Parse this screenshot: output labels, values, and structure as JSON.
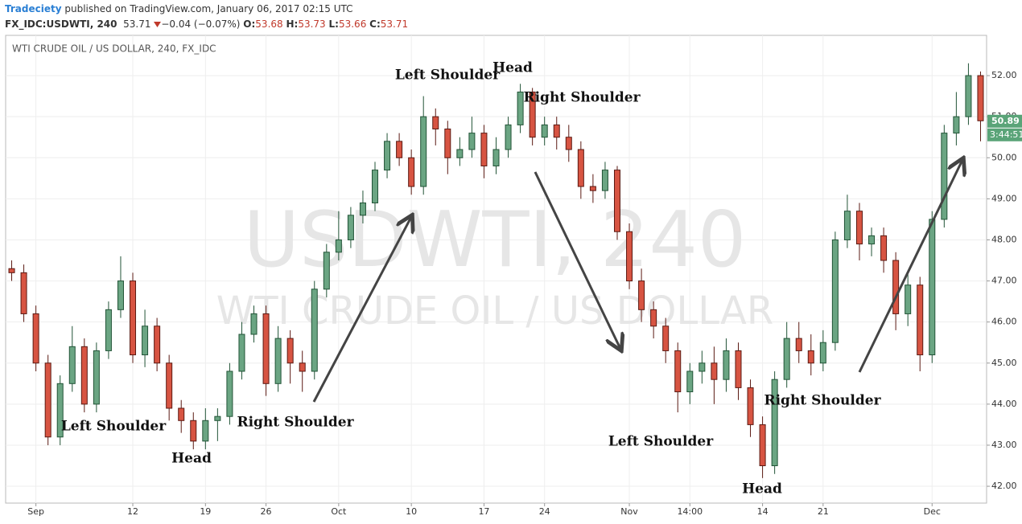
{
  "header": {
    "publisher": "Tradeciety",
    "published": "published on TradingView.com, January 06, 2017 02:15 UTC",
    "symbol": "FX_IDC:USDWTI, 240",
    "last": "53.71",
    "change": "−0.04 (−0.07%)",
    "open_label": "O:",
    "open": "53.68",
    "high_label": "H:",
    "high": "53.73",
    "low_label": "L:",
    "low": "53.66",
    "close_label": "C:",
    "close": "53.71"
  },
  "chart_data": {
    "type": "candlestick",
    "title": "WTI CRUDE OIL / US DOLLAR, 240, FX_IDC",
    "watermark": [
      "USDWTI, 240",
      "WTI CRUDE OIL / US DOLLAR"
    ],
    "up_color": "#6ba583",
    "up_border": "#225437",
    "down_color": "#d75442",
    "down_border": "#5b1a13",
    "grid": true,
    "categories": [
      null,
      null,
      "Sep",
      null,
      null,
      null,
      null,
      null,
      null,
      null,
      "12",
      null,
      null,
      null,
      null,
      null,
      "19",
      null,
      null,
      null,
      null,
      "26",
      null,
      null,
      null,
      null,
      null,
      "Oct",
      null,
      null,
      null,
      null,
      null,
      "10",
      null,
      null,
      null,
      null,
      null,
      "17",
      null,
      null,
      null,
      null,
      "24",
      null,
      null,
      null,
      null,
      null,
      null,
      "Nov",
      null,
      null,
      null,
      null,
      "14:00",
      null,
      null,
      null,
      null,
      null,
      "14",
      null,
      null,
      null,
      null,
      "21",
      null,
      null,
      null,
      null,
      null,
      null,
      null,
      null,
      "Dec",
      null,
      null,
      null,
      null
    ],
    "open": [
      47.3,
      47.2,
      46.2,
      45.0,
      43.2,
      44.5,
      45.4,
      44.0,
      45.3,
      46.3,
      47.0,
      45.2,
      45.9,
      45.0,
      43.9,
      43.6,
      43.1,
      43.6,
      43.7,
      44.8,
      45.7,
      46.2,
      44.5,
      45.6,
      45.0,
      44.8,
      46.8,
      47.7,
      48.0,
      48.6,
      48.9,
      49.7,
      50.4,
      50.0,
      49.3,
      51.0,
      50.7,
      50.0,
      50.2,
      50.6,
      49.8,
      50.2,
      50.8,
      51.6,
      50.5,
      50.8,
      50.5,
      50.2,
      49.3,
      49.2,
      49.7,
      48.2,
      47.0,
      46.3,
      45.9,
      45.3,
      44.3,
      44.8,
      45.0,
      44.6,
      45.3,
      44.4,
      43.5,
      42.5,
      44.6,
      45.6,
      45.3,
      45.0,
      45.5,
      48.0,
      48.7,
      47.9,
      48.1,
      47.5,
      46.2,
      46.9,
      45.2,
      48.5,
      50.6,
      51.0,
      52.0
    ],
    "high": [
      47.5,
      47.4,
      46.4,
      45.2,
      44.7,
      45.9,
      45.6,
      45.5,
      46.5,
      47.6,
      47.2,
      46.3,
      46.1,
      45.2,
      44.1,
      43.8,
      43.9,
      43.9,
      45.0,
      46.0,
      46.4,
      46.4,
      45.9,
      45.8,
      45.3,
      47.0,
      47.9,
      48.7,
      48.8,
      49.2,
      49.9,
      50.6,
      50.6,
      50.2,
      51.5,
      51.2,
      50.9,
      50.5,
      51.0,
      50.8,
      50.5,
      51.0,
      51.8,
      51.7,
      51.0,
      51.0,
      50.8,
      50.4,
      49.6,
      49.9,
      49.8,
      48.4,
      47.3,
      46.5,
      46.1,
      45.5,
      45.0,
      45.3,
      45.4,
      45.6,
      45.5,
      44.6,
      43.7,
      44.8,
      46.0,
      46.0,
      45.7,
      45.8,
      48.2,
      49.1,
      48.9,
      48.3,
      48.3,
      47.7,
      47.2,
      47.1,
      48.7,
      50.8,
      51.6,
      52.3,
      52.1
    ],
    "low": [
      47.0,
      46.0,
      44.8,
      43.0,
      43.0,
      44.3,
      43.8,
      43.8,
      45.1,
      46.1,
      45.0,
      44.9,
      44.8,
      43.6,
      43.3,
      42.9,
      42.9,
      43.1,
      43.5,
      44.6,
      45.5,
      44.2,
      44.3,
      44.5,
      44.3,
      44.6,
      46.6,
      47.5,
      47.8,
      48.4,
      48.7,
      49.5,
      49.8,
      49.1,
      49.1,
      50.3,
      49.6,
      49.8,
      50.0,
      49.5,
      49.6,
      50.0,
      50.6,
      50.3,
      50.3,
      50.2,
      49.9,
      49.0,
      48.9,
      49.0,
      48.0,
      46.8,
      46.0,
      45.6,
      45.0,
      43.8,
      44.0,
      44.5,
      44.0,
      44.3,
      44.1,
      43.2,
      42.2,
      42.3,
      44.4,
      45.0,
      44.7,
      44.8,
      45.3,
      47.8,
      47.5,
      47.6,
      47.2,
      45.8,
      45.9,
      44.8,
      45.0,
      48.3,
      50.3,
      50.8,
      50.4
    ],
    "close": [
      47.2,
      46.2,
      45.0,
      43.2,
      44.5,
      45.4,
      44.0,
      45.3,
      46.3,
      47.0,
      45.2,
      45.9,
      45.0,
      43.9,
      43.6,
      43.1,
      43.6,
      43.7,
      44.8,
      45.7,
      46.2,
      44.5,
      45.6,
      45.0,
      44.8,
      46.8,
      47.7,
      48.0,
      48.6,
      48.9,
      49.7,
      50.4,
      50.0,
      49.3,
      51.0,
      50.7,
      50.0,
      50.2,
      50.6,
      49.8,
      50.2,
      50.8,
      51.6,
      50.5,
      50.8,
      50.5,
      50.2,
      49.3,
      49.2,
      49.7,
      48.2,
      47.0,
      46.3,
      45.9,
      45.3,
      44.3,
      44.8,
      45.0,
      44.6,
      45.3,
      44.4,
      43.5,
      42.5,
      44.6,
      45.6,
      45.3,
      45.0,
      45.5,
      48.0,
      48.7,
      47.9,
      48.1,
      47.5,
      46.2,
      46.9,
      45.2,
      48.5,
      50.6,
      51.0,
      52.0,
      50.9
    ],
    "ylim": [
      41.59,
      52.98
    ],
    "yticks": [
      {
        "value": 42,
        "label": "42.00"
      },
      {
        "value": 43,
        "label": "43.00"
      },
      {
        "value": 44,
        "label": "44.00"
      },
      {
        "value": 45,
        "label": "45.00"
      },
      {
        "value": 46,
        "label": "46.00"
      },
      {
        "value": 47,
        "label": "47.00"
      },
      {
        "value": 48,
        "label": "48.00"
      },
      {
        "value": 49,
        "label": "49.00"
      },
      {
        "value": 50,
        "label": "50.00"
      },
      {
        "value": 51,
        "label": "51.00"
      },
      {
        "value": 52,
        "label": "52.00"
      }
    ],
    "last_price": 50.89,
    "countdown": "3:44:51",
    "annotations": [
      "Left Shoulder",
      "Head",
      "Right Shoulder",
      "Left Shoulder",
      "Head",
      "Right Shoulder",
      "Left Shoulder",
      "Head",
      "Right Shoulder"
    ]
  }
}
